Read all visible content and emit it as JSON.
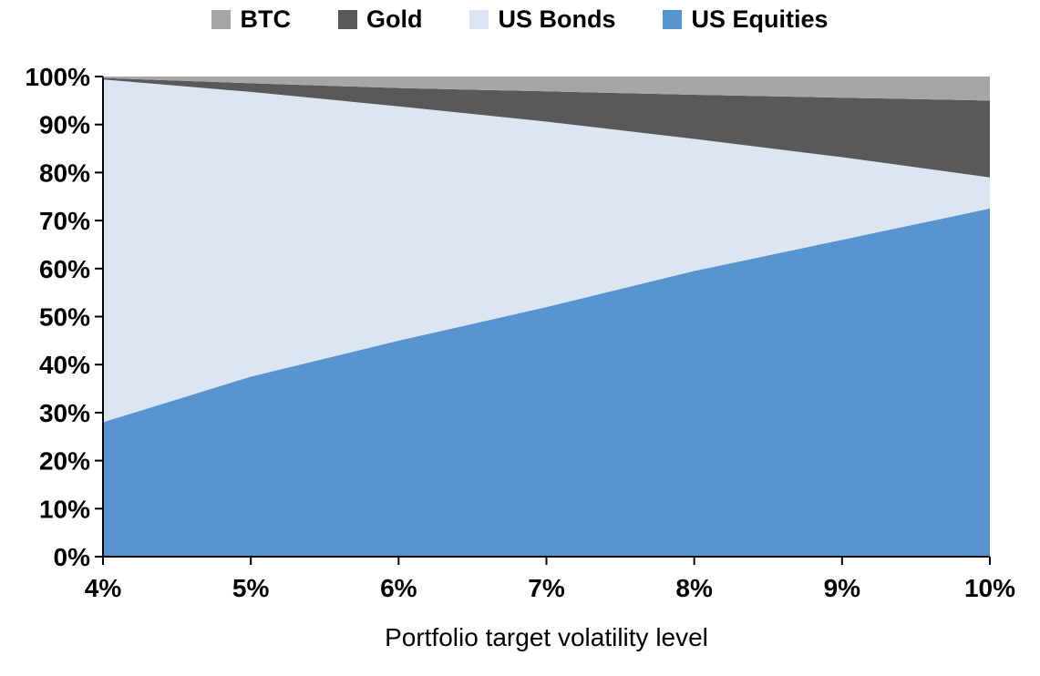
{
  "chart_data": {
    "type": "area",
    "stacked": true,
    "title": "",
    "xlabel": "Portfolio target volatility level",
    "ylabel": "",
    "x": [
      4,
      5,
      6,
      7,
      8,
      9,
      10
    ],
    "x_ticklabels": [
      "4%",
      "5%",
      "6%",
      "7%",
      "8%",
      "9%",
      "10%"
    ],
    "xlim": [
      4,
      10
    ],
    "ylim": [
      0,
      100
    ],
    "y_ticks": [
      0,
      10,
      20,
      30,
      40,
      50,
      60,
      70,
      80,
      90,
      100
    ],
    "y_ticklabels": [
      "0%",
      "10%",
      "20%",
      "30%",
      "40%",
      "50%",
      "60%",
      "70%",
      "80%",
      "90%",
      "100%"
    ],
    "grid": false,
    "legend_position": "top",
    "legend_order": [
      "BTC",
      "Gold",
      "US Bonds",
      "US Equities"
    ],
    "series": [
      {
        "name": "US Equities",
        "color": "#5894cf",
        "values": [
          28,
          37.5,
          45,
          52,
          59.5,
          66,
          72.5
        ]
      },
      {
        "name": "US Bonds",
        "color": "#dce6f2",
        "values": [
          71.4,
          59.3,
          48.8,
          38.6,
          27.5,
          17.2,
          6.5
        ]
      },
      {
        "name": "Gold",
        "color": "#595959",
        "values": [
          0.3,
          1.8,
          3.8,
          6.3,
          9.2,
          12.4,
          16
        ]
      },
      {
        "name": "BTC",
        "color": "#a6a6a6",
        "values": [
          0.3,
          1.4,
          2.4,
          3.1,
          3.8,
          4.4,
          5
        ]
      }
    ],
    "axis_color": "#000000",
    "background": "#ffffff"
  }
}
